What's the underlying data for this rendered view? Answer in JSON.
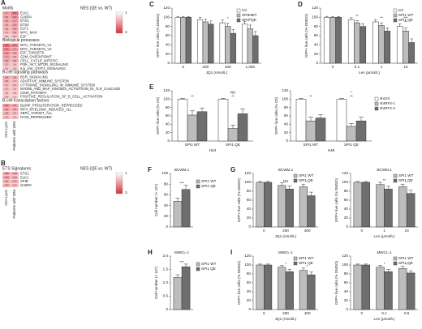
{
  "chart_data": [
    {
      "type": "heatmap",
      "panel": "A",
      "columns": [
        "OCI-Ly10",
        "Patients with WM"
      ],
      "scale": {
        "title": "NES (QE vs. WT)",
        "min": 1,
        "max": 3,
        "colors": [
          "#ffffff",
          "#d7303c"
        ]
      },
      "sections": [
        {
          "title": "Motifs",
          "rows": [
            {
              "label": "ELK1",
              "values": [
                2.0,
                2.3
              ]
            },
            {
              "label": "GABPA",
              "values": [
                1.9,
                2.1
              ]
            },
            {
              "label": "ETS1",
              "values": [
                1.9,
                2.0
              ]
            },
            {
              "label": "ETS2",
              "values": [
                1.8,
                1.9
              ]
            },
            {
              "label": "ELF1",
              "values": [
                1.8,
                1.9
              ]
            },
            {
              "label": "MYC_MAX",
              "values": [
                1.7,
                1.8
              ]
            },
            {
              "label": "E2F",
              "values": [
                1.6,
                1.7
              ]
            }
          ]
        },
        {
          "title": "Biological processes",
          "rows": [
            {
              "label": "MYC_TARGETS_V1",
              "values": [
                2.4,
                2.2
              ]
            },
            {
              "label": "MYC_TARGETS_V2",
              "values": [
                2.2,
                2.0
              ]
            },
            {
              "label": "E2F_TARGETS",
              "values": [
                2.1,
                1.9
              ]
            },
            {
              "label": "G2M_CHECKPOINT",
              "values": [
                2.0,
                1.8
              ]
            },
            {
              "label": "CELL_CYCLE_MITOTIC",
              "values": [
                1.9,
                1.8
              ]
            },
            {
              "label": "PI3K_AKT_MTOR_SIGNALING",
              "values": [
                1.7,
                1.6
              ]
            },
            {
              "label": "IL6_JAK_STAT3_SIGNALING",
              "values": [
                1.6,
                1.6
              ]
            }
          ]
        },
        {
          "title": "B-cell signaling pathways",
          "rows": [
            {
              "label": "BCR_SIGNALING",
              "values": [
                1.9,
                1.8
              ]
            },
            {
              "label": "ADAPTIVE_IMMUNE_SYSTEM",
              "values": [
                1.8,
                1.7
              ]
            },
            {
              "label": "CYTOKINE_SIGNALING_IN_IMMUNE_SYSTEM",
              "values": [
                1.7,
                1.7
              ]
            },
            {
              "label": "MYD88_AND_MAP_KINASES_ACTIVATION_IN_TLR_CASCADE",
              "values": [
                1.7,
                1.6
              ]
            },
            {
              "label": "CD40_PATHWAY",
              "values": [
                1.6,
                1.6
              ]
            },
            {
              "label": "POSITIVE_REGULATION_OF_B_CELL_ACTIVATION",
              "values": [
                1.6,
                1.5
              ]
            }
          ]
        },
        {
          "title": "B-cell transcription factors",
          "rows": [
            {
              "label": "BLIMP_PROLIFERATION_REPRESSED",
              "values": [
                2.1,
                1.9
              ]
            },
            {
              "label": "IRF4_MYELOMA_INDUCED_ALL",
              "values": [
                1.9,
                1.8
              ]
            },
            {
              "label": "XBP1_TARGET_ALL",
              "values": [
                1.8,
                1.7
              ]
            },
            {
              "label": "PAX5_REPRESSED",
              "values": [
                1.7,
                1.6
              ]
            }
          ]
        }
      ]
    },
    {
      "type": "heatmap",
      "panel": "B",
      "columns": [
        "OCI-Ly10",
        "Patients with WM"
      ],
      "scale": {
        "title": "NES (QE vs. WT)",
        "min": 1,
        "max": 3,
        "colors": [
          "#ffffff",
          "#d7303c"
        ]
      },
      "sections": [
        {
          "title": "ETS Signatures",
          "rows": [
            {
              "label": "ETS1",
              "values": [
                1.86,
                1.79
              ]
            },
            {
              "label": "ELK1",
              "values": [
                1.84,
                1.75
              ]
            },
            {
              "label": "SPIB",
              "values": [
                1.8,
                1.72
              ]
            },
            {
              "label": "GABPA",
              "values": [
                1.77,
                1.7
              ]
            }
          ]
        }
      ]
    },
    {
      "type": "bar",
      "panel": "C",
      "ylabel": "GFP+ live cells (% DMSO)",
      "xlabel": "JQ1 (nmol/L)",
      "categories": [
        "0",
        "200",
        "400",
        "1,000"
      ],
      "ylim": [
        0,
        120
      ],
      "yticks": [
        0,
        20,
        40,
        60,
        80,
        100,
        120
      ],
      "legend": "upper right",
      "series": [
        {
          "name": "Ctl",
          "color": "#ffffff",
          "values": [
            100,
            95,
            88,
            85
          ],
          "errors": [
            2,
            5,
            6,
            6
          ]
        },
        {
          "name": "SPI1 WT",
          "color": "#bdbdbd",
          "values": [
            100,
            90,
            80,
            75
          ],
          "errors": [
            2,
            6,
            7,
            8
          ]
        },
        {
          "name": "SPI1 QE",
          "color": "#6e6e6e",
          "values": [
            100,
            85,
            65,
            60
          ],
          "errors": [
            2,
            7,
            8,
            9
          ]
        }
      ],
      "annotations": [
        {
          "category": "400",
          "text": "*"
        },
        {
          "category": "1,000",
          "text": "**"
        },
        {
          "category": "1,000",
          "text": "***"
        }
      ]
    },
    {
      "type": "bar",
      "panel": "D",
      "ylabel": "GFP+ live cells (% DMSO)",
      "xlabel": "Len (μmol/L)",
      "categories": [
        "0",
        "0.1",
        "1",
        "10"
      ],
      "ylim": [
        0,
        120
      ],
      "yticks": [
        0,
        20,
        40,
        60,
        80,
        100,
        120
      ],
      "legend": "upper right",
      "series": [
        {
          "name": "Ctl",
          "color": "#ffffff",
          "values": [
            100,
            95,
            90,
            80
          ],
          "errors": [
            2,
            4,
            5,
            6
          ]
        },
        {
          "name": "SPI1 WT",
          "color": "#bdbdbd",
          "values": [
            100,
            88,
            82,
            70
          ],
          "errors": [
            2,
            5,
            6,
            7
          ]
        },
        {
          "name": "SPI1 QE",
          "color": "#6e6e6e",
          "values": [
            100,
            80,
            70,
            45
          ],
          "errors": [
            2,
            6,
            7,
            8
          ]
        }
      ],
      "annotations": [
        {
          "category": "0.1",
          "text": "**"
        },
        {
          "category": "1",
          "text": "**"
        },
        {
          "category": "10",
          "text": "**"
        },
        {
          "category": "10",
          "text": "***"
        }
      ]
    },
    {
      "type": "bar",
      "panel": "E",
      "ylabel": "GFP+ live cells (% Ctl)",
      "subtitle": "H24",
      "categories": [
        "SPI1 WT",
        "SPI1 QE"
      ],
      "ylim": [
        0,
        120
      ],
      "yticks": [
        0,
        20,
        40,
        60,
        80,
        100,
        120
      ],
      "series": [
        {
          "name": "shCtrl",
          "color": "#ffffff",
          "values": [
            100,
            100
          ],
          "errors": [
            2,
            2
          ]
        },
        {
          "name": "shIRF4-1",
          "color": "#bdbdbd",
          "values": [
            62,
            30
          ],
          "errors": [
            10,
            8
          ]
        },
        {
          "name": "shIRF4-2",
          "color": "#6e6e6e",
          "values": [
            70,
            65
          ],
          "errors": [
            9,
            12
          ]
        }
      ],
      "annotations": [
        {
          "category": "SPI1 WT",
          "text": "**"
        },
        {
          "category": "SPI1 QE",
          "text": "**"
        },
        {
          "category": "SPI1 QE",
          "text": "NS"
        }
      ]
    },
    {
      "type": "bar",
      "ylabel": "GFP+ live cells (% Ctl)",
      "subtitle": "H48",
      "categories": [
        "SPI1 WT",
        "SPI1 QE"
      ],
      "ylim": [
        0,
        120
      ],
      "yticks": [
        0,
        20,
        40,
        60,
        80,
        100,
        120
      ],
      "legend": "right",
      "series": [
        {
          "name": "shCtrl",
          "color": "#ffffff",
          "values": [
            100,
            100
          ],
          "errors": [
            2,
            2
          ]
        },
        {
          "name": "shIRF4-1",
          "color": "#bdbdbd",
          "values": [
            48,
            35
          ],
          "errors": [
            9,
            7
          ]
        },
        {
          "name": "shIRF4-2",
          "color": "#6e6e6e",
          "values": [
            55,
            48
          ],
          "errors": [
            8,
            9
          ]
        }
      ],
      "annotations": [
        {
          "category": "SPI1 WT",
          "text": "**"
        },
        {
          "category": "SPI1 QE",
          "text": "**"
        },
        {
          "category": "SPI1 QE",
          "text": "*"
        }
      ]
    },
    {
      "type": "bar",
      "panel": "F",
      "title": "BCWM.1",
      "ylabel": "Cell number (× 10⁵)",
      "categories": [
        null
      ],
      "ylim": [
        0,
        100
      ],
      "yticks": [
        0,
        20,
        40,
        60,
        80,
        100
      ],
      "legend": "right",
      "series": [
        {
          "name": "SPI1 WT",
          "color": "#bdbdbd",
          "values": [
            48
          ],
          "errors": [
            6
          ]
        },
        {
          "name": "SPI1 QE",
          "color": "#6e6e6e",
          "values": [
            70
          ],
          "errors": [
            8
          ]
        }
      ],
      "annotations": [
        {
          "category": null,
          "text": "***"
        }
      ]
    },
    {
      "type": "bar",
      "panel": "G",
      "title": "BCWM.1",
      "ylabel": "GFP+ live cells (% DMSO)",
      "xlabel": "JQ1 (nmol/L)",
      "categories": [
        "0",
        "200",
        "400"
      ],
      "ylim": [
        0,
        120
      ],
      "yticks": [
        0,
        20,
        40,
        60,
        80,
        100,
        120
      ],
      "legend": "upper right",
      "series": [
        {
          "name": "SPI1 WT",
          "color": "#bdbdbd",
          "values": [
            100,
            93,
            90
          ],
          "errors": [
            2,
            6,
            6
          ]
        },
        {
          "name": "SPI1 QE",
          "color": "#6e6e6e",
          "values": [
            100,
            85,
            70
          ],
          "errors": [
            2,
            7,
            8
          ]
        }
      ],
      "annotations": [
        {
          "category": "200",
          "text": "NS"
        },
        {
          "category": "400",
          "text": "*"
        }
      ]
    },
    {
      "type": "bar",
      "title": "BCWM.1",
      "ylabel": "GFP+ live cells (% DMSO)",
      "xlabel": "Len (μmol/L)",
      "categories": [
        "0",
        "1",
        "10"
      ],
      "ylim": [
        0,
        120
      ],
      "yticks": [
        0,
        20,
        40,
        60,
        80,
        100,
        120
      ],
      "legend": "upper right",
      "series": [
        {
          "name": "SPI1 WT",
          "color": "#bdbdbd",
          "values": [
            100,
            95,
            90
          ],
          "errors": [
            2,
            5,
            6
          ]
        },
        {
          "name": "SPI1 QE",
          "color": "#6e6e6e",
          "values": [
            100,
            85,
            75
          ],
          "errors": [
            2,
            6,
            7
          ]
        }
      ],
      "annotations": [
        {
          "category": "1",
          "text": "**"
        },
        {
          "category": "10",
          "text": "*"
        }
      ]
    },
    {
      "type": "bar",
      "panel": "H",
      "title": "MWCL-1",
      "ylabel": "Cell number (× 10⁵)",
      "categories": [
        null
      ],
      "ylim": [
        0,
        2
      ],
      "yticks": [
        0,
        0.5,
        {
          "value": 1,
          "label": "1.0"
        },
        1.5,
        {
          "value": 2,
          "label": "2.0"
        }
      ],
      "legend": "right",
      "series": [
        {
          "name": "SPI1 WT",
          "color": "#bdbdbd",
          "values": [
            1.2
          ],
          "errors": [
            0.1
          ]
        },
        {
          "name": "SPI1 QE",
          "color": "#6e6e6e",
          "values": [
            1.6
          ],
          "errors": [
            0.1
          ]
        }
      ],
      "annotations": [
        {
          "category": null,
          "text": "***"
        }
      ]
    },
    {
      "type": "bar",
      "panel": "I",
      "title": "MWCL-1",
      "ylabel": "GFP+ live cells (% DMSO)",
      "xlabel": "JQ1 (nmol/L)",
      "categories": [
        "0",
        "200",
        "400"
      ],
      "ylim": [
        0,
        120
      ],
      "yticks": [
        0,
        20,
        40,
        60,
        80,
        100,
        120
      ],
      "legend": "upper right",
      "series": [
        {
          "name": "SPI1 WT",
          "color": "#bdbdbd",
          "values": [
            100,
            95,
            88
          ],
          "errors": [
            2,
            4,
            5
          ]
        },
        {
          "name": "SPI1 QE",
          "color": "#6e6e6e",
          "values": [
            100,
            85,
            78
          ],
          "errors": [
            2,
            5,
            6
          ]
        }
      ],
      "annotations": [
        {
          "category": "200",
          "text": "*"
        },
        {
          "category": "400",
          "text": "*"
        }
      ]
    },
    {
      "type": "bar",
      "title": "MWCL-1",
      "ylabel": "GFP+ live cells (% DMSO)",
      "xlabel": "Len (μmol/L)",
      "categories": [
        "0",
        "0.1",
        "0.5"
      ],
      "ylim": [
        0,
        120
      ],
      "yticks": [
        0,
        20,
        40,
        60,
        80,
        100,
        120
      ],
      "legend": "upper right",
      "series": [
        {
          "name": "SPI1 WT",
          "color": "#bdbdbd",
          "values": [
            100,
            95,
            92
          ],
          "errors": [
            2,
            4,
            5
          ]
        },
        {
          "name": "SPI1 QE",
          "color": "#6e6e6e",
          "values": [
            100,
            85,
            82
          ],
          "errors": [
            2,
            5,
            5
          ]
        }
      ],
      "annotations": [
        {
          "category": "0.1",
          "text": "*"
        },
        {
          "category": "0.5",
          "text": "*"
        }
      ]
    }
  ]
}
